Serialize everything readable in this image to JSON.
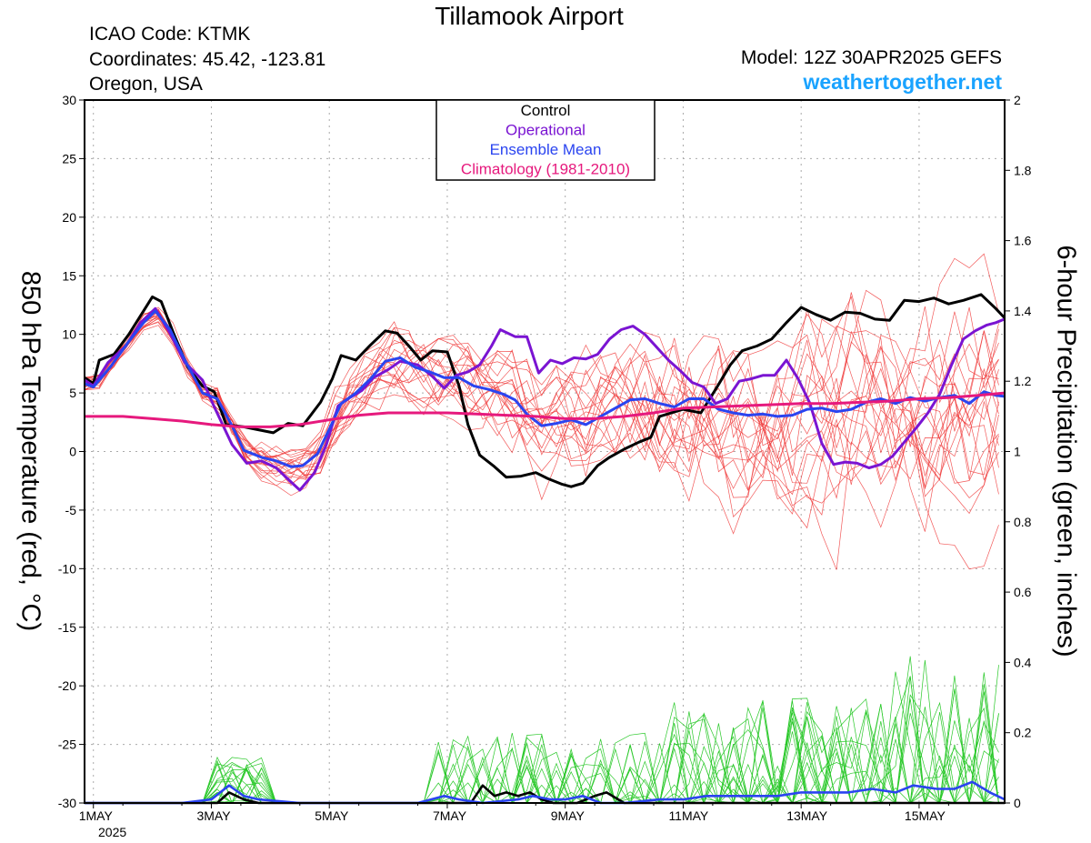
{
  "header": {
    "title": "Tillamook Airport",
    "icao": "ICAO Code: KTMK",
    "coords": "Coordinates: 45.42, -123.81",
    "region": "Oregon, USA",
    "model": "Model: 12Z 30APR2025 GEFS",
    "site": "weathertogether.net"
  },
  "chart_data": {
    "type": "line",
    "ylabel": "850 hPa Temperature (red, °C)",
    "y2label": "6-hour Precipitation (green, inches)",
    "xlabel": "",
    "ylim": [
      -30,
      30
    ],
    "y2lim": [
      0,
      2
    ],
    "yticks": [
      30,
      25,
      20,
      15,
      10,
      5,
      0,
      -5,
      -10,
      -15,
      -20,
      -25,
      -30
    ],
    "y2ticks": [
      2,
      1.8,
      1.6,
      1.4,
      1.2,
      1,
      0.8,
      0.6,
      0.4,
      0.2,
      0
    ],
    "xlim_days": [
      0.85,
      16.45
    ],
    "x_tick_labels": [
      {
        "day": 1,
        "label": "1MAY"
      },
      {
        "day": 3,
        "label": "3MAY"
      },
      {
        "day": 5,
        "label": "5MAY"
      },
      {
        "day": 7,
        "label": "7MAY"
      },
      {
        "day": 9,
        "label": "9MAY"
      },
      {
        "day": 11,
        "label": "11MAY"
      },
      {
        "day": 13,
        "label": "13MAY"
      },
      {
        "day": 15,
        "label": "15MAY"
      }
    ],
    "x_year_label": "2025",
    "grid": true,
    "legend_position": "top-center",
    "legend": [
      {
        "name": "Control",
        "color": "#000000"
      },
      {
        "name": "Operational",
        "color": "#7a14d2"
      },
      {
        "name": "Ensemble Mean",
        "color": "#2a44f0"
      },
      {
        "name": "Climatology (1981-2010)",
        "color": "#e6197d"
      }
    ],
    "series_temperature": [
      {
        "name": "Control",
        "color": "#000000",
        "values": [
          [
            0.85,
            6.3
          ],
          [
            1.0,
            5.8
          ],
          [
            1.1,
            7.8
          ],
          [
            1.35,
            8.3
          ],
          [
            1.6,
            10
          ],
          [
            1.85,
            12
          ],
          [
            2.0,
            13.2
          ],
          [
            2.15,
            12.8
          ],
          [
            2.35,
            10.2
          ],
          [
            2.6,
            7.2
          ],
          [
            2.85,
            5.6
          ],
          [
            3.05,
            5.1
          ],
          [
            3.25,
            2.3
          ],
          [
            3.55,
            2.1
          ],
          [
            3.75,
            1.9
          ],
          [
            4.05,
            1.6
          ],
          [
            4.3,
            2.4
          ],
          [
            4.55,
            2.2
          ],
          [
            4.85,
            4.2
          ],
          [
            5.05,
            6.2
          ],
          [
            5.2,
            8.2
          ],
          [
            5.45,
            7.8
          ],
          [
            5.7,
            9.1
          ],
          [
            5.95,
            10.3
          ],
          [
            6.15,
            10.1
          ],
          [
            6.35,
            9.0
          ],
          [
            6.55,
            7.8
          ],
          [
            6.75,
            8.6
          ],
          [
            7.0,
            8.5
          ],
          [
            7.2,
            5.6
          ],
          [
            7.35,
            2.3
          ],
          [
            7.55,
            -0.3
          ],
          [
            7.8,
            -1.3
          ],
          [
            8.0,
            -2.2
          ],
          [
            8.25,
            -2.1
          ],
          [
            8.5,
            -1.8
          ],
          [
            8.7,
            -2.3
          ],
          [
            8.95,
            -2.8
          ],
          [
            9.1,
            -3.0
          ],
          [
            9.3,
            -2.7
          ],
          [
            9.55,
            -1.2
          ],
          [
            9.75,
            -0.5
          ],
          [
            10.0,
            0.2
          ],
          [
            10.25,
            0.8
          ],
          [
            10.45,
            1.2
          ],
          [
            10.6,
            3.0
          ],
          [
            11.0,
            3.6
          ],
          [
            11.3,
            3.3
          ],
          [
            11.55,
            5.3
          ],
          [
            11.8,
            7.4
          ],
          [
            12.0,
            8.6
          ],
          [
            12.25,
            9.0
          ],
          [
            12.5,
            9.6
          ],
          [
            12.75,
            11.0
          ],
          [
            13.0,
            12.3
          ],
          [
            13.25,
            11.7
          ],
          [
            13.5,
            11.2
          ],
          [
            13.75,
            11.9
          ],
          [
            14.0,
            11.8
          ],
          [
            14.25,
            11.3
          ],
          [
            14.5,
            11.2
          ],
          [
            14.75,
            12.9
          ],
          [
            15.0,
            12.8
          ],
          [
            15.25,
            13.1
          ],
          [
            15.5,
            12.6
          ],
          [
            15.75,
            12.9
          ],
          [
            16.05,
            13.4
          ],
          [
            16.3,
            12.2
          ],
          [
            16.45,
            11.4
          ]
        ]
      },
      {
        "name": "Operational",
        "color": "#7a14d2",
        "values": [
          [
            0.85,
            6.1
          ],
          [
            1.0,
            5.6
          ],
          [
            1.25,
            7.6
          ],
          [
            1.55,
            9.0
          ],
          [
            1.8,
            11
          ],
          [
            2.05,
            12.2
          ],
          [
            2.3,
            10.1
          ],
          [
            2.55,
            7.6
          ],
          [
            2.85,
            6.1
          ],
          [
            3.05,
            3.8
          ],
          [
            3.35,
            0.6
          ],
          [
            3.6,
            -1.0
          ],
          [
            3.85,
            -0.8
          ],
          [
            4.1,
            -1.4
          ],
          [
            4.35,
            -2.6
          ],
          [
            4.5,
            -3.3
          ],
          [
            4.75,
            -1.8
          ],
          [
            4.95,
            0.6
          ],
          [
            5.15,
            3.9
          ],
          [
            5.35,
            4.6
          ],
          [
            5.55,
            5.2
          ],
          [
            5.75,
            6.3
          ],
          [
            6.0,
            7.0
          ],
          [
            6.2,
            7.7
          ],
          [
            6.5,
            7.4
          ],
          [
            6.75,
            6.4
          ],
          [
            6.95,
            5.4
          ],
          [
            7.15,
            6.5
          ],
          [
            7.35,
            6.8
          ],
          [
            7.55,
            7.4
          ],
          [
            7.75,
            9.0
          ],
          [
            7.9,
            10.4
          ],
          [
            8.15,
            9.8
          ],
          [
            8.35,
            9.8
          ],
          [
            8.55,
            6.7
          ],
          [
            8.75,
            7.8
          ],
          [
            8.95,
            7.5
          ],
          [
            9.15,
            8.0
          ],
          [
            9.35,
            7.9
          ],
          [
            9.55,
            8.3
          ],
          [
            9.75,
            9.6
          ],
          [
            9.95,
            10.4
          ],
          [
            10.15,
            10.7
          ],
          [
            10.35,
            10.0
          ],
          [
            10.55,
            8.9
          ],
          [
            10.75,
            7.8
          ],
          [
            10.95,
            6.9
          ],
          [
            11.15,
            5.9
          ],
          [
            11.35,
            5.5
          ],
          [
            11.55,
            4.1
          ],
          [
            11.75,
            4.5
          ],
          [
            11.95,
            6.0
          ],
          [
            12.15,
            6.2
          ],
          [
            12.35,
            6.5
          ],
          [
            12.55,
            6.5
          ],
          [
            12.75,
            7.8
          ],
          [
            12.95,
            6.2
          ],
          [
            13.15,
            4.1
          ],
          [
            13.35,
            0.7
          ],
          [
            13.55,
            -1.1
          ],
          [
            13.75,
            -0.9
          ],
          [
            13.95,
            -1.0
          ],
          [
            14.15,
            -1.4
          ],
          [
            14.35,
            -1.1
          ],
          [
            14.55,
            -0.4
          ],
          [
            14.75,
            0.8
          ],
          [
            14.95,
            2.0
          ],
          [
            15.15,
            3.3
          ],
          [
            15.35,
            4.9
          ],
          [
            15.55,
            7.4
          ],
          [
            15.75,
            9.6
          ],
          [
            15.95,
            10.3
          ],
          [
            16.15,
            10.8
          ],
          [
            16.3,
            11.0
          ],
          [
            16.45,
            11.3
          ]
        ]
      },
      {
        "name": "Ensemble Mean",
        "color": "#2a44f0",
        "values": [
          [
            0.85,
            5.8
          ],
          [
            1.0,
            5.5
          ],
          [
            1.3,
            7.3
          ],
          [
            1.6,
            9.4
          ],
          [
            1.85,
            11.0
          ],
          [
            2.05,
            12.0
          ],
          [
            2.3,
            10.4
          ],
          [
            2.55,
            7.8
          ],
          [
            2.85,
            5.0
          ],
          [
            3.1,
            4.5
          ],
          [
            3.35,
            2.2
          ],
          [
            3.55,
            0.1
          ],
          [
            3.85,
            -0.5
          ],
          [
            4.1,
            -0.8
          ],
          [
            4.35,
            -1.3
          ],
          [
            4.55,
            -1.2
          ],
          [
            4.8,
            -0.2
          ],
          [
            5.0,
            1.9
          ],
          [
            5.2,
            4.1
          ],
          [
            5.45,
            5.0
          ],
          [
            5.7,
            6.2
          ],
          [
            5.95,
            7.7
          ],
          [
            6.2,
            8.0
          ],
          [
            6.45,
            7.2
          ],
          [
            6.7,
            6.8
          ],
          [
            6.95,
            6.3
          ],
          [
            7.2,
            6.3
          ],
          [
            7.45,
            5.6
          ],
          [
            7.7,
            5.3
          ],
          [
            7.95,
            4.9
          ],
          [
            8.15,
            4.4
          ],
          [
            8.35,
            3.2
          ],
          [
            8.6,
            2.2
          ],
          [
            8.85,
            2.4
          ],
          [
            9.1,
            2.7
          ],
          [
            9.35,
            2.3
          ],
          [
            9.6,
            3.0
          ],
          [
            9.85,
            3.7
          ],
          [
            10.1,
            4.4
          ],
          [
            10.35,
            4.5
          ],
          [
            10.6,
            4.1
          ],
          [
            10.85,
            3.8
          ],
          [
            11.1,
            4.5
          ],
          [
            11.35,
            4.5
          ],
          [
            11.6,
            3.6
          ],
          [
            11.85,
            3.3
          ],
          [
            12.1,
            3.1
          ],
          [
            12.35,
            3.2
          ],
          [
            12.6,
            3.0
          ],
          [
            12.85,
            3.1
          ],
          [
            13.1,
            3.6
          ],
          [
            13.35,
            3.7
          ],
          [
            13.6,
            3.4
          ],
          [
            13.85,
            3.6
          ],
          [
            14.1,
            4.2
          ],
          [
            14.35,
            4.5
          ],
          [
            14.6,
            4.1
          ],
          [
            14.85,
            4.6
          ],
          [
            15.1,
            4.3
          ],
          [
            15.35,
            4.6
          ],
          [
            15.6,
            4.8
          ],
          [
            15.85,
            4.1
          ],
          [
            16.1,
            5.1
          ],
          [
            16.3,
            4.8
          ],
          [
            16.45,
            4.7
          ]
        ]
      },
      {
        "name": "Climatology (1981-2010)",
        "color": "#e6197d",
        "values": [
          [
            0.85,
            3.0
          ],
          [
            1.5,
            3.0
          ],
          [
            2.0,
            2.8
          ],
          [
            2.5,
            2.6
          ],
          [
            3.0,
            2.3
          ],
          [
            3.5,
            2.1
          ],
          [
            4.0,
            2.1
          ],
          [
            4.5,
            2.3
          ],
          [
            5.0,
            2.7
          ],
          [
            5.5,
            3.1
          ],
          [
            6.0,
            3.3
          ],
          [
            6.5,
            3.3
          ],
          [
            7.0,
            3.3
          ],
          [
            7.5,
            3.2
          ],
          [
            8.0,
            3.1
          ],
          [
            8.5,
            3.0
          ],
          [
            9.0,
            2.8
          ],
          [
            9.5,
            2.8
          ],
          [
            10.0,
            3.0
          ],
          [
            10.5,
            3.3
          ],
          [
            11.0,
            3.7
          ],
          [
            11.5,
            3.8
          ],
          [
            12.0,
            3.9
          ],
          [
            12.5,
            4.0
          ],
          [
            13.0,
            4.1
          ],
          [
            13.5,
            4.1
          ],
          [
            14.0,
            4.2
          ],
          [
            14.5,
            4.3
          ],
          [
            15.0,
            4.5
          ],
          [
            15.5,
            4.6
          ],
          [
            16.0,
            4.8
          ],
          [
            16.45,
            5.0
          ]
        ]
      }
    ],
    "series_precipitation": [
      {
        "name": "Control",
        "color": "#000000",
        "values": [
          [
            0.85,
            0
          ],
          [
            3.1,
            0
          ],
          [
            3.3,
            0.03
          ],
          [
            3.55,
            0.01
          ],
          [
            3.8,
            0
          ],
          [
            7.4,
            0
          ],
          [
            7.6,
            0.05
          ],
          [
            7.8,
            0.02
          ],
          [
            8.0,
            0.03
          ],
          [
            8.2,
            0.02
          ],
          [
            8.4,
            0.03
          ],
          [
            8.6,
            0.01
          ],
          [
            8.8,
            0
          ],
          [
            9.2,
            0
          ],
          [
            9.5,
            0.02
          ],
          [
            9.7,
            0.03
          ],
          [
            9.9,
            0.01
          ],
          [
            10.0,
            0
          ],
          [
            16.45,
            0
          ]
        ]
      },
      {
        "name": "Ensemble Mean",
        "color": "#2a44f0",
        "values": [
          [
            0.85,
            0
          ],
          [
            2.5,
            0
          ],
          [
            3.0,
            0.01
          ],
          [
            3.3,
            0.05
          ],
          [
            3.55,
            0.02
          ],
          [
            3.8,
            0.01
          ],
          [
            4.5,
            0
          ],
          [
            6.5,
            0
          ],
          [
            6.95,
            0.02
          ],
          [
            7.2,
            0.01
          ],
          [
            7.6,
            0
          ],
          [
            8.2,
            0.01
          ],
          [
            8.45,
            0.02
          ],
          [
            8.75,
            0.01
          ],
          [
            9.0,
            0.01
          ],
          [
            9.3,
            0.02
          ],
          [
            9.6,
            0
          ],
          [
            10.0,
            0
          ],
          [
            10.6,
            0.01
          ],
          [
            11.0,
            0.01
          ],
          [
            11.4,
            0.02
          ],
          [
            11.8,
            0.02
          ],
          [
            12.2,
            0.02
          ],
          [
            12.6,
            0.02
          ],
          [
            13.0,
            0.03
          ],
          [
            13.4,
            0.03
          ],
          [
            13.8,
            0.03
          ],
          [
            14.2,
            0.04
          ],
          [
            14.6,
            0.03
          ],
          [
            14.9,
            0.05
          ],
          [
            15.3,
            0.04
          ],
          [
            15.6,
            0.04
          ],
          [
            15.9,
            0.06
          ],
          [
            16.2,
            0.03
          ],
          [
            16.45,
            0.01
          ]
        ]
      }
    ],
    "ensemble_temperature_members": 20,
    "ensemble_precipitation_members": 20
  }
}
